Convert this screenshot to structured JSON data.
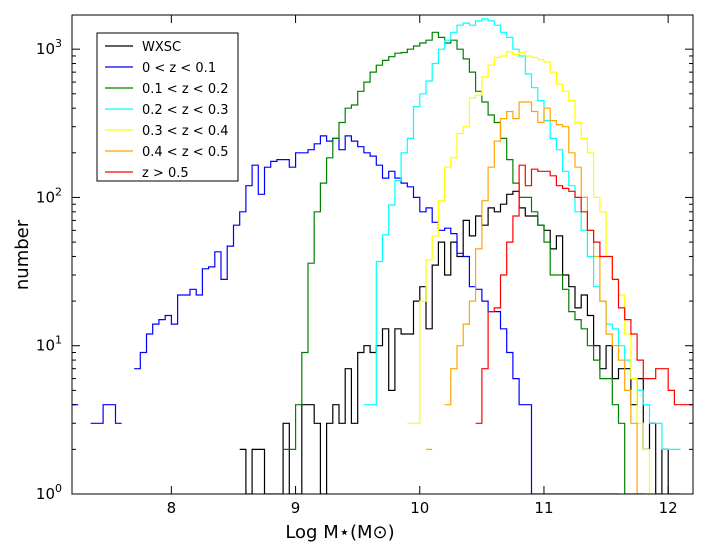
{
  "chart_data": {
    "type": "line",
    "step": true,
    "title": "",
    "xlabel": "Log M⋆(M⊙)",
    "ylabel": "number",
    "xlim": [
      7.2,
      12.2
    ],
    "ylim": [
      1,
      1700
    ],
    "yscale": "log",
    "grid": false,
    "legend_position": "top-left",
    "xticks": [
      "8",
      "9",
      "10",
      "11",
      "12"
    ],
    "yticks": [
      "10^0",
      "10^1",
      "10^2",
      "10^3"
    ],
    "series": [
      {
        "name": "WXSC",
        "color": "#000000",
        "x": [
          8.55,
          8.6,
          8.65,
          8.7,
          8.75,
          8.8,
          8.85,
          8.9,
          8.95,
          9.0,
          9.05,
          9.1,
          9.15,
          9.2,
          9.25,
          9.3,
          9.35,
          9.4,
          9.45,
          9.5,
          9.55,
          9.6,
          9.65,
          9.7,
          9.75,
          9.8,
          9.85,
          9.9,
          9.95,
          10.0,
          10.05,
          10.1,
          10.15,
          10.2,
          10.25,
          10.3,
          10.35,
          10.4,
          10.45,
          10.5,
          10.55,
          10.6,
          10.65,
          10.7,
          10.75,
          10.8,
          10.85,
          10.9,
          10.95,
          11.0,
          11.05,
          11.1,
          11.15,
          11.2,
          11.25,
          11.3,
          11.35,
          11.4,
          11.45,
          11.5,
          11.55,
          11.6,
          11.65,
          11.7,
          11.75,
          11.8,
          11.85,
          11.9,
          11.95,
          12.0,
          12.05
        ],
        "y": [
          2,
          1,
          2,
          2,
          1,
          1,
          1,
          3,
          1,
          1,
          4,
          4,
          3,
          1,
          3,
          4,
          3,
          7,
          3,
          9,
          10,
          9,
          10,
          13,
          5,
          13,
          12,
          12,
          20,
          25,
          13,
          35,
          50,
          30,
          50,
          40,
          70,
          55,
          75,
          65,
          85,
          80,
          90,
          105,
          110,
          85,
          75,
          75,
          65,
          60,
          45,
          55,
          30,
          25,
          18,
          22,
          16,
          10,
          7,
          10,
          6,
          7,
          7,
          4,
          6,
          2,
          3,
          1,
          2,
          1,
          1
        ]
      },
      {
        "name": "0 < z < 0.1",
        "color": "#0000ff",
        "x": [
          7.2,
          7.35,
          7.45,
          7.55,
          7.7,
          7.75,
          7.8,
          7.85,
          7.9,
          7.95,
          8.0,
          8.05,
          8.1,
          8.15,
          8.2,
          8.25,
          8.3,
          8.35,
          8.4,
          8.45,
          8.5,
          8.55,
          8.6,
          8.65,
          8.7,
          8.75,
          8.8,
          8.85,
          8.9,
          8.95,
          9.0,
          9.05,
          9.1,
          9.15,
          9.2,
          9.25,
          9.3,
          9.35,
          9.4,
          9.45,
          9.5,
          9.55,
          9.6,
          9.65,
          9.7,
          9.75,
          9.8,
          9.85,
          9.9,
          9.95,
          10.0,
          10.05,
          10.1,
          10.15,
          10.2,
          10.25,
          10.3,
          10.35,
          10.4,
          10.45,
          10.5,
          10.55,
          10.6,
          10.65,
          10.7,
          10.75,
          10.8,
          10.85,
          10.9,
          10.95,
          11.0,
          11.05,
          11.1,
          11.15,
          11.2,
          11.25,
          11.3,
          11.35,
          11.4,
          11.45,
          11.5,
          11.55
        ],
        "y": [
          4,
          3,
          4,
          3,
          7,
          9,
          12,
          14,
          15,
          16,
          14,
          22,
          22,
          24,
          22,
          33,
          34,
          43,
          28,
          47,
          65,
          80,
          120,
          165,
          105,
          160,
          175,
          180,
          180,
          160,
          200,
          200,
          210,
          230,
          260,
          240,
          250,
          210,
          260,
          240,
          220,
          200,
          190,
          165,
          135,
          150,
          135,
          125,
          118,
          100,
          80,
          85,
          68,
          60,
          62,
          57,
          42,
          40,
          25,
          24,
          20,
          17,
          17,
          13,
          9,
          6,
          4,
          4,
          1,
          1,
          1,
          1,
          1,
          1,
          1,
          1,
          1,
          1,
          1,
          1,
          1,
          1
        ]
      },
      {
        "name": "0.1 < z < 0.2",
        "color": "#008000",
        "x": [
          8.9,
          9.0,
          9.05,
          9.1,
          9.15,
          9.2,
          9.25,
          9.3,
          9.35,
          9.4,
          9.45,
          9.5,
          9.55,
          9.6,
          9.65,
          9.7,
          9.75,
          9.8,
          9.85,
          9.9,
          9.95,
          10.0,
          10.05,
          10.1,
          10.15,
          10.2,
          10.25,
          10.3,
          10.35,
          10.4,
          10.45,
          10.5,
          10.55,
          10.6,
          10.65,
          10.7,
          10.75,
          10.8,
          10.85,
          10.9,
          10.95,
          11.0,
          11.05,
          11.1,
          11.15,
          11.2,
          11.25,
          11.3,
          11.35,
          11.4,
          11.45,
          11.5,
          11.55,
          11.6,
          11.65,
          11.7,
          11.75
        ],
        "y": [
          2,
          4,
          9,
          36,
          80,
          125,
          185,
          250,
          320,
          400,
          420,
          520,
          600,
          700,
          780,
          840,
          890,
          940,
          950,
          1000,
          1050,
          1100,
          1150,
          1300,
          1200,
          1100,
          1150,
          1000,
          860,
          700,
          520,
          440,
          360,
          320,
          250,
          180,
          125,
          100,
          100,
          80,
          65,
          50,
          30,
          30,
          24,
          17,
          15,
          13,
          10,
          8,
          6,
          6,
          4,
          3,
          1,
          1,
          1
        ]
      },
      {
        "name": "0.2 < z < 0.3",
        "color": "#00ffff",
        "x": [
          9.55,
          9.65,
          9.7,
          9.75,
          9.8,
          9.85,
          9.9,
          9.95,
          10.0,
          10.05,
          10.1,
          10.15,
          10.2,
          10.25,
          10.3,
          10.35,
          10.4,
          10.45,
          10.5,
          10.55,
          10.6,
          10.65,
          10.7,
          10.75,
          10.8,
          10.85,
          10.9,
          10.95,
          11.0,
          11.05,
          11.1,
          11.15,
          11.2,
          11.25,
          11.3,
          11.35,
          11.4,
          11.45,
          11.5,
          11.55,
          11.6,
          11.65,
          11.7,
          11.75,
          11.8,
          11.85,
          11.9,
          11.95,
          12.0,
          12.05
        ],
        "y": [
          4,
          37,
          56,
          89,
          130,
          200,
          250,
          410,
          500,
          610,
          800,
          1000,
          1150,
          1300,
          1450,
          1500,
          1450,
          1550,
          1600,
          1550,
          1450,
          1300,
          1200,
          1000,
          900,
          680,
          550,
          450,
          330,
          250,
          210,
          150,
          120,
          80,
          60,
          40,
          25,
          20,
          14,
          13,
          10,
          8,
          6,
          5,
          4,
          3,
          3,
          2,
          2,
          2
        ]
      },
      {
        "name": "0.3 < z < 0.4",
        "color": "#ffff00",
        "x": [
          9.9,
          10.0,
          10.05,
          10.1,
          10.15,
          10.2,
          10.25,
          10.3,
          10.35,
          10.4,
          10.45,
          10.5,
          10.55,
          10.6,
          10.65,
          10.7,
          10.75,
          10.8,
          10.85,
          10.9,
          10.95,
          11.0,
          11.05,
          11.1,
          11.15,
          11.2,
          11.25,
          11.3,
          11.35,
          11.4,
          11.45,
          11.5,
          11.55,
          11.6,
          11.65,
          11.7,
          11.75,
          11.8,
          11.85
        ],
        "y": [
          3,
          20,
          38,
          55,
          95,
          160,
          185,
          270,
          300,
          470,
          490,
          650,
          780,
          880,
          900,
          960,
          920,
          950,
          900,
          880,
          850,
          820,
          700,
          580,
          520,
          450,
          320,
          250,
          200,
          100,
          80,
          40,
          28,
          22,
          12,
          6,
          3,
          2,
          1
        ]
      },
      {
        "name": "0.4 < z < 0.5",
        "color": "#ffa500",
        "x": [
          10.05,
          10.2,
          10.25,
          10.3,
          10.35,
          10.4,
          10.45,
          10.5,
          10.55,
          10.6,
          10.65,
          10.7,
          10.75,
          10.8,
          10.85,
          10.9,
          10.95,
          11.0,
          11.05,
          11.1,
          11.15,
          11.2,
          11.25,
          11.3,
          11.35,
          11.4,
          11.45,
          11.5,
          11.55,
          11.6,
          11.65,
          11.7,
          11.75,
          11.8
        ],
        "y": [
          2,
          4,
          7,
          10,
          14,
          20,
          45,
          95,
          160,
          240,
          340,
          380,
          340,
          440,
          440,
          380,
          320,
          400,
          330,
          310,
          300,
          200,
          160,
          100,
          60,
          40,
          20,
          12,
          10,
          8,
          5,
          3,
          1,
          1
        ]
      },
      {
        "name": "z > 0.5",
        "color": "#ff0000",
        "x": [
          10.45,
          10.5,
          10.55,
          10.6,
          10.65,
          10.7,
          10.75,
          10.8,
          10.85,
          10.9,
          10.95,
          11.0,
          11.05,
          11.1,
          11.15,
          11.2,
          11.25,
          11.3,
          11.35,
          11.4,
          11.45,
          11.5,
          11.55,
          11.6,
          11.65,
          11.7,
          11.75,
          11.8,
          11.85,
          11.9,
          11.95,
          12.0,
          12.05,
          12.1,
          12.15,
          12.2
        ],
        "y": [
          3,
          7,
          17,
          18,
          30,
          50,
          75,
          165,
          120,
          155,
          150,
          150,
          140,
          120,
          115,
          110,
          100,
          80,
          60,
          50,
          40,
          40,
          28,
          18,
          15,
          12,
          8,
          6,
          6,
          7,
          7,
          5,
          4,
          4,
          4,
          4
        ]
      }
    ]
  }
}
